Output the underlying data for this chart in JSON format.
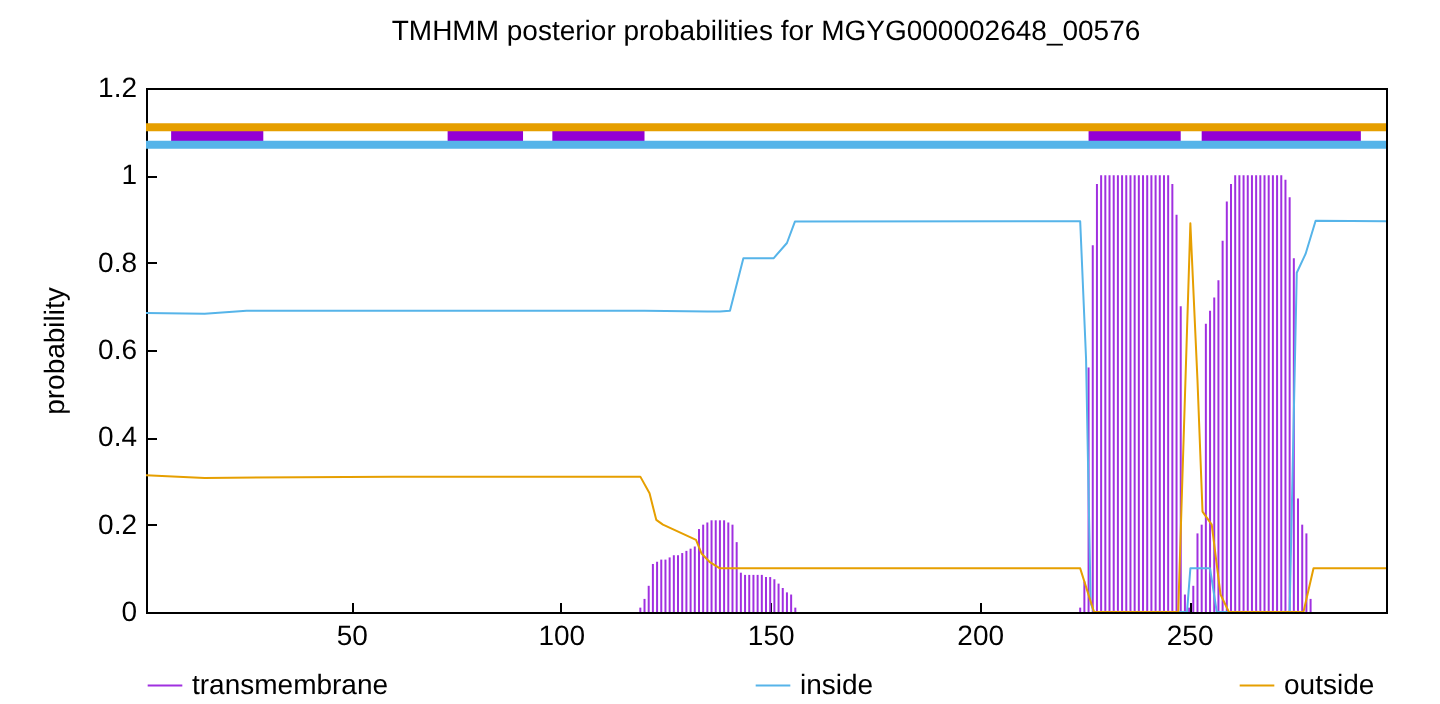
{
  "chart_data": {
    "type": "line",
    "title": "TMHMM posterior probabilities for MGYG000002648_00576",
    "ylabel": "probability",
    "xlim": [
      1,
      297
    ],
    "xticks": [
      50,
      100,
      150,
      200,
      250
    ],
    "ylim": [
      0,
      1.2
    ],
    "yticks": [
      0,
      0.2,
      0.4,
      0.6,
      0.8,
      1,
      1.2
    ],
    "grid": false,
    "legend": "bottom",
    "ref_lines": [
      {
        "axis": "y",
        "value": 1.11,
        "color": "#e69f00"
      },
      {
        "axis": "y",
        "value": 1.07,
        "color": "#56b4e9"
      }
    ],
    "series": [
      {
        "name": "transmembrane",
        "type": "bar",
        "color": "#a030e0",
        "x": [
          119,
          120,
          121,
          122,
          123,
          124,
          125,
          126,
          127,
          128,
          129,
          130,
          131,
          132,
          133,
          134,
          135,
          136,
          137,
          138,
          139,
          140,
          141,
          142,
          143,
          144,
          145,
          146,
          147,
          148,
          149,
          150,
          151,
          152,
          153,
          154,
          155,
          156,
          224,
          225,
          226,
          227,
          228,
          229,
          230,
          231,
          232,
          233,
          234,
          235,
          236,
          237,
          238,
          239,
          240,
          241,
          242,
          243,
          244,
          245,
          246,
          247,
          248,
          249,
          250,
          251,
          252,
          253,
          254,
          255,
          256,
          257,
          258,
          259,
          260,
          261,
          262,
          263,
          264,
          265,
          266,
          267,
          268,
          269,
          270,
          271,
          272,
          273,
          274,
          275,
          276,
          277,
          278,
          279
        ],
        "values": [
          0.01,
          0.03,
          0.06,
          0.11,
          0.115,
          0.12,
          0.12,
          0.125,
          0.13,
          0.13,
          0.135,
          0.14,
          0.145,
          0.15,
          0.19,
          0.2,
          0.205,
          0.21,
          0.21,
          0.21,
          0.21,
          0.205,
          0.2,
          0.16,
          0.09,
          0.085,
          0.085,
          0.085,
          0.085,
          0.085,
          0.08,
          0.08,
          0.075,
          0.065,
          0.055,
          0.045,
          0.04,
          0.01,
          0.01,
          0.07,
          0.56,
          0.84,
          0.98,
          1,
          1,
          1,
          1,
          1,
          1,
          1,
          1,
          1,
          1,
          1,
          1,
          1,
          1,
          1,
          1,
          1,
          0.98,
          0.91,
          0.7,
          0.04,
          0.01,
          0.06,
          0.18,
          0.2,
          0.66,
          0.69,
          0.72,
          0.76,
          0.85,
          0.94,
          0.98,
          1,
          1,
          1,
          1,
          1,
          1,
          1,
          1,
          1,
          1,
          1,
          1,
          0.99,
          0.95,
          0.81,
          0.26,
          0.2,
          0.18,
          0.03
        ]
      },
      {
        "name": "inside",
        "color": "#56b4e9",
        "x": [
          1,
          15,
          25,
          60,
          100,
          120,
          135,
          138,
          140.4,
          143.6,
          150.8,
          154,
          155.9,
          224,
          225.4,
          226.5,
          227.3,
          249.5,
          250.3,
          255,
          256.6,
          274,
          275.7,
          277.8,
          280.2,
          297
        ],
        "values": [
          0.685,
          0.683,
          0.69,
          0.69,
          0.69,
          0.69,
          0.688,
          0.688,
          0.69,
          0.81,
          0.81,
          0.845,
          0.894,
          0.895,
          0.58,
          0.02,
          0,
          0,
          0.1,
          0.1,
          0,
          0,
          0.777,
          0.82,
          0.896,
          0.895
        ]
      },
      {
        "name": "outside",
        "color": "#e69f00",
        "x": [
          1,
          15,
          60,
          119,
          121.2,
          122.8,
          124.4,
          132.3,
          133.6,
          135.5,
          138,
          224,
          227.3,
          247.4,
          250.3,
          252,
          253.2,
          255.4,
          257.5,
          259.5,
          277.3,
          279.7,
          297
        ],
        "values": [
          0.313,
          0.307,
          0.31,
          0.31,
          0.272,
          0.211,
          0.2,
          0.165,
          0.134,
          0.115,
          0.1,
          0.1,
          0,
          0,
          0.89,
          0.53,
          0.23,
          0.2,
          0.04,
          0,
          0,
          0.1,
          0.1
        ]
      },
      {
        "color": "#9400d3",
        "x": [
          7,
          29
        ],
        "values": [
          1.09,
          1.09
        ]
      },
      {
        "color": "#9400d3",
        "x": [
          73,
          91
        ],
        "values": [
          1.09,
          1.09
        ]
      },
      {
        "color": "#9400d3",
        "x": [
          98,
          120
        ],
        "values": [
          1.09,
          1.09
        ]
      },
      {
        "color": "#9400d3",
        "x": [
          226,
          248
        ],
        "values": [
          1.09,
          1.09
        ]
      },
      {
        "color": "#9400d3",
        "x": [
          253,
          275.5,
          291
        ],
        "values": [
          1.09,
          1.09,
          1.09
        ]
      }
    ]
  }
}
